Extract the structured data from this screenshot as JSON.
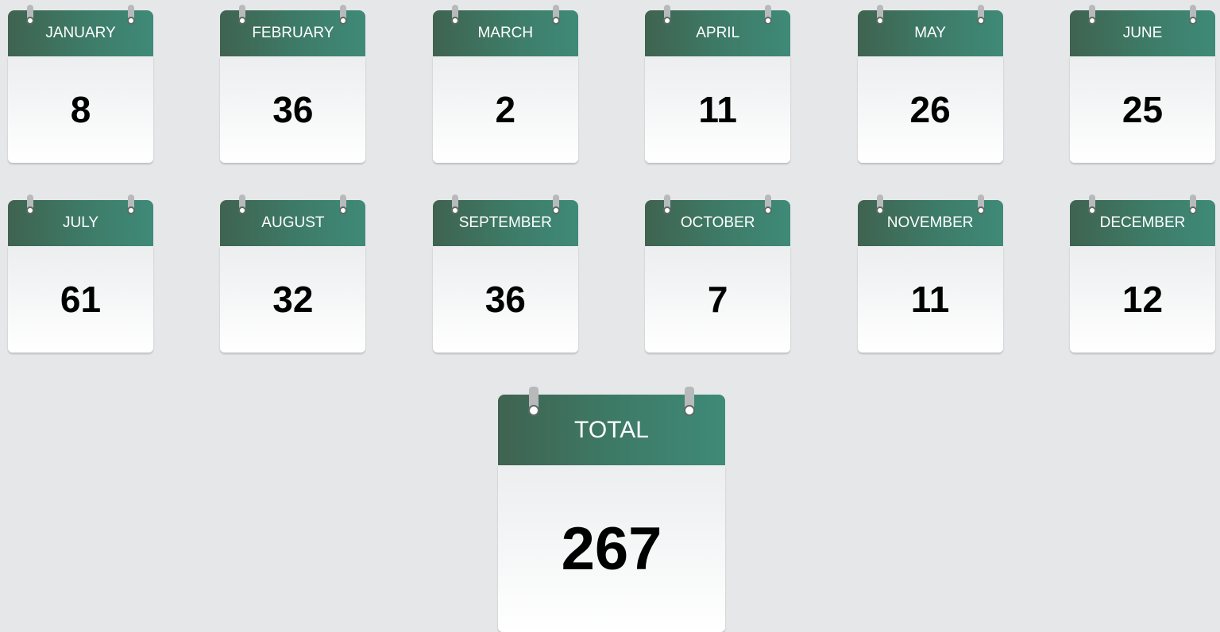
{
  "months": [
    {
      "label": "JANUARY",
      "value": 8
    },
    {
      "label": "FEBRUARY",
      "value": 36
    },
    {
      "label": "MARCH",
      "value": 2
    },
    {
      "label": "APRIL",
      "value": 11
    },
    {
      "label": "MAY",
      "value": 26
    },
    {
      "label": "JUNE",
      "value": 25
    },
    {
      "label": "JULY",
      "value": 61
    },
    {
      "label": "AUGUST",
      "value": 32
    },
    {
      "label": "SEPTEMBER",
      "value": 36
    },
    {
      "label": "OCTOBER",
      "value": 7
    },
    {
      "label": "NOVEMBER",
      "value": 11
    },
    {
      "label": "DECEMBER",
      "value": 12
    }
  ],
  "total": {
    "label": "TOTAL",
    "value": 267
  }
}
